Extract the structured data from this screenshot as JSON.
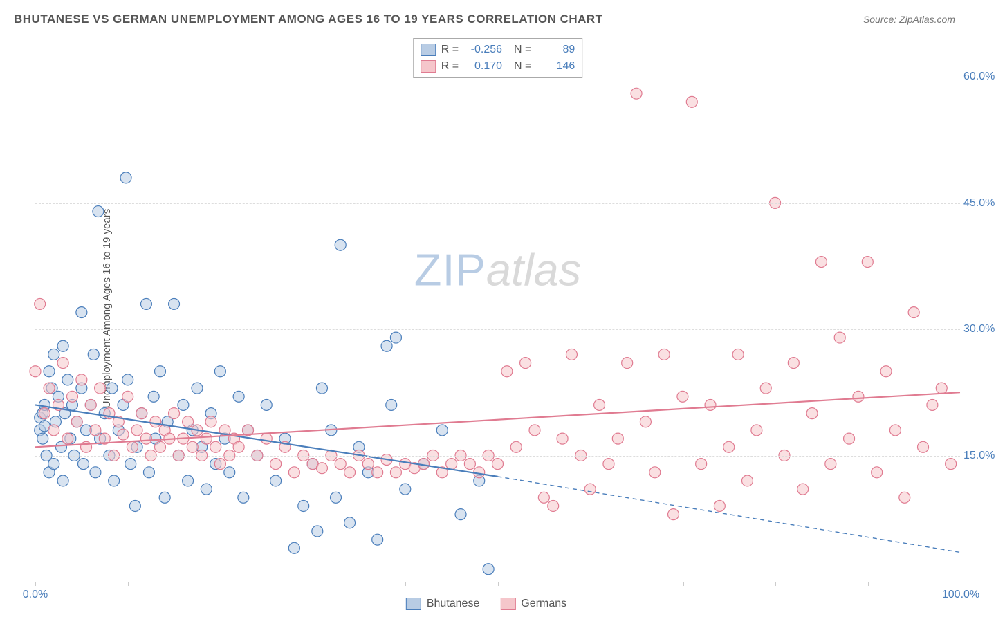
{
  "title": "BHUTANESE VS GERMAN UNEMPLOYMENT AMONG AGES 16 TO 19 YEARS CORRELATION CHART",
  "source": "Source: ZipAtlas.com",
  "y_axis_label": "Unemployment Among Ages 16 to 19 years",
  "watermark": {
    "part1": "ZIP",
    "part2": "atlas"
  },
  "chart": {
    "type": "scatter",
    "xlim": [
      0,
      100
    ],
    "ylim": [
      0,
      65
    ],
    "x_ticks": [
      0,
      10,
      20,
      30,
      40,
      50,
      60,
      70,
      80,
      90,
      100
    ],
    "x_tick_labels": {
      "0": "0.0%",
      "100": "100.0%"
    },
    "y_ticks": [
      15,
      30,
      45,
      60
    ],
    "y_tick_labels": [
      "15.0%",
      "30.0%",
      "45.0%",
      "60.0%"
    ],
    "grid_color": "#dddddd",
    "background_color": "#ffffff",
    "marker_radius": 8,
    "marker_stroke_width": 1.2,
    "marker_opacity": 0.55,
    "trend_line_width": 2.2
  },
  "series": [
    {
      "name": "Bhutanese",
      "fill_color": "#b8cce4",
      "stroke_color": "#4a7ebb",
      "R": "-0.256",
      "N": "89",
      "trend": {
        "x1": 0,
        "y1": 21,
        "x2": 50,
        "y2": 12.5,
        "ext_x2": 100,
        "ext_y2": 3.5,
        "dashed_from": 50
      },
      "points": [
        [
          0.5,
          18
        ],
        [
          0.5,
          19.5
        ],
        [
          0.8,
          17
        ],
        [
          0.8,
          20
        ],
        [
          1,
          21
        ],
        [
          1,
          18.5
        ],
        [
          1.2,
          15
        ],
        [
          1.5,
          25
        ],
        [
          1.5,
          13
        ],
        [
          1.8,
          23
        ],
        [
          2,
          27
        ],
        [
          2,
          14
        ],
        [
          2.2,
          19
        ],
        [
          2.5,
          22
        ],
        [
          2.8,
          16
        ],
        [
          3,
          28
        ],
        [
          3,
          12
        ],
        [
          3.2,
          20
        ],
        [
          3.5,
          24
        ],
        [
          3.8,
          17
        ],
        [
          4,
          21
        ],
        [
          4.2,
          15
        ],
        [
          4.5,
          19
        ],
        [
          5,
          23
        ],
        [
          5,
          32
        ],
        [
          5.2,
          14
        ],
        [
          5.5,
          18
        ],
        [
          6,
          21
        ],
        [
          6.3,
          27
        ],
        [
          6.5,
          13
        ],
        [
          6.8,
          44
        ],
        [
          7,
          17
        ],
        [
          7.5,
          20
        ],
        [
          8,
          15
        ],
        [
          8.3,
          23
        ],
        [
          8.5,
          12
        ],
        [
          9,
          18
        ],
        [
          9.5,
          21
        ],
        [
          9.8,
          48
        ],
        [
          10,
          24
        ],
        [
          10.3,
          14
        ],
        [
          10.8,
          9
        ],
        [
          11,
          16
        ],
        [
          11.5,
          20
        ],
        [
          12,
          33
        ],
        [
          12.3,
          13
        ],
        [
          12.8,
          22
        ],
        [
          13,
          17
        ],
        [
          13.5,
          25
        ],
        [
          14,
          10
        ],
        [
          14.3,
          19
        ],
        [
          15,
          33
        ],
        [
          15.5,
          15
        ],
        [
          16,
          21
        ],
        [
          16.5,
          12
        ],
        [
          17,
          18
        ],
        [
          17.5,
          23
        ],
        [
          18,
          16
        ],
        [
          18.5,
          11
        ],
        [
          19,
          20
        ],
        [
          19.5,
          14
        ],
        [
          20,
          25
        ],
        [
          20.5,
          17
        ],
        [
          21,
          13
        ],
        [
          22,
          22
        ],
        [
          22.5,
          10
        ],
        [
          23,
          18
        ],
        [
          24,
          15
        ],
        [
          25,
          21
        ],
        [
          26,
          12
        ],
        [
          27,
          17
        ],
        [
          28,
          4
        ],
        [
          29,
          9
        ],
        [
          30,
          14
        ],
        [
          30.5,
          6
        ],
        [
          31,
          23
        ],
        [
          32,
          18
        ],
        [
          32.5,
          10
        ],
        [
          33,
          40
        ],
        [
          34,
          7
        ],
        [
          35,
          16
        ],
        [
          36,
          13
        ],
        [
          37,
          5
        ],
        [
          38,
          28
        ],
        [
          38.5,
          21
        ],
        [
          39,
          29
        ],
        [
          40,
          11
        ],
        [
          42,
          14
        ],
        [
          44,
          18
        ],
        [
          46,
          8
        ],
        [
          48,
          12
        ],
        [
          49,
          1.5
        ]
      ]
    },
    {
      "name": "Germans",
      "fill_color": "#f5c6cb",
      "stroke_color": "#e07b91",
      "R": "0.170",
      "N": "146",
      "trend": {
        "x1": 0,
        "y1": 16,
        "x2": 100,
        "y2": 22.5
      },
      "points": [
        [
          0,
          25
        ],
        [
          0.5,
          33
        ],
        [
          1,
          20
        ],
        [
          1.5,
          23
        ],
        [
          2,
          18
        ],
        [
          2.5,
          21
        ],
        [
          3,
          26
        ],
        [
          3.5,
          17
        ],
        [
          4,
          22
        ],
        [
          4.5,
          19
        ],
        [
          5,
          24
        ],
        [
          5.5,
          16
        ],
        [
          6,
          21
        ],
        [
          6.5,
          18
        ],
        [
          7,
          23
        ],
        [
          7.5,
          17
        ],
        [
          8,
          20
        ],
        [
          8.5,
          15
        ],
        [
          9,
          19
        ],
        [
          9.5,
          17.5
        ],
        [
          10,
          22
        ],
        [
          10.5,
          16
        ],
        [
          11,
          18
        ],
        [
          11.5,
          20
        ],
        [
          12,
          17
        ],
        [
          12.5,
          15
        ],
        [
          13,
          19
        ],
        [
          13.5,
          16
        ],
        [
          14,
          18
        ],
        [
          14.5,
          17
        ],
        [
          15,
          20
        ],
        [
          15.5,
          15
        ],
        [
          16,
          17
        ],
        [
          16.5,
          19
        ],
        [
          17,
          16
        ],
        [
          17.5,
          18
        ],
        [
          18,
          15
        ],
        [
          18.5,
          17
        ],
        [
          19,
          19
        ],
        [
          19.5,
          16
        ],
        [
          20,
          14
        ],
        [
          20.5,
          18
        ],
        [
          21,
          15
        ],
        [
          21.5,
          17
        ],
        [
          22,
          16
        ],
        [
          23,
          18
        ],
        [
          24,
          15
        ],
        [
          25,
          17
        ],
        [
          26,
          14
        ],
        [
          27,
          16
        ],
        [
          28,
          13
        ],
        [
          29,
          15
        ],
        [
          30,
          14
        ],
        [
          31,
          13.5
        ],
        [
          32,
          15
        ],
        [
          33,
          14
        ],
        [
          34,
          13
        ],
        [
          35,
          15
        ],
        [
          36,
          14
        ],
        [
          37,
          13
        ],
        [
          38,
          14.5
        ],
        [
          39,
          13
        ],
        [
          40,
          14
        ],
        [
          41,
          13.5
        ],
        [
          42,
          14
        ],
        [
          43,
          15
        ],
        [
          44,
          13
        ],
        [
          45,
          14
        ],
        [
          46,
          15
        ],
        [
          47,
          14
        ],
        [
          48,
          13
        ],
        [
          49,
          15
        ],
        [
          50,
          14
        ],
        [
          51,
          25
        ],
        [
          52,
          16
        ],
        [
          53,
          26
        ],
        [
          54,
          18
        ],
        [
          55,
          10
        ],
        [
          56,
          9
        ],
        [
          57,
          17
        ],
        [
          58,
          27
        ],
        [
          59,
          15
        ],
        [
          60,
          11
        ],
        [
          61,
          21
        ],
        [
          62,
          14
        ],
        [
          63,
          17
        ],
        [
          64,
          26
        ],
        [
          65,
          58
        ],
        [
          66,
          19
        ],
        [
          67,
          13
        ],
        [
          68,
          27
        ],
        [
          69,
          8
        ],
        [
          70,
          22
        ],
        [
          71,
          57
        ],
        [
          72,
          14
        ],
        [
          73,
          21
        ],
        [
          74,
          9
        ],
        [
          75,
          16
        ],
        [
          76,
          27
        ],
        [
          77,
          12
        ],
        [
          78,
          18
        ],
        [
          79,
          23
        ],
        [
          80,
          45
        ],
        [
          81,
          15
        ],
        [
          82,
          26
        ],
        [
          83,
          11
        ],
        [
          84,
          20
        ],
        [
          85,
          38
        ],
        [
          86,
          14
        ],
        [
          87,
          29
        ],
        [
          88,
          17
        ],
        [
          89,
          22
        ],
        [
          90,
          38
        ],
        [
          91,
          13
        ],
        [
          92,
          25
        ],
        [
          93,
          18
        ],
        [
          94,
          10
        ],
        [
          95,
          32
        ],
        [
          96,
          16
        ],
        [
          97,
          21
        ],
        [
          98,
          23
        ],
        [
          99,
          14
        ]
      ]
    }
  ],
  "legend": {
    "items": [
      "Bhutanese",
      "Germans"
    ]
  }
}
